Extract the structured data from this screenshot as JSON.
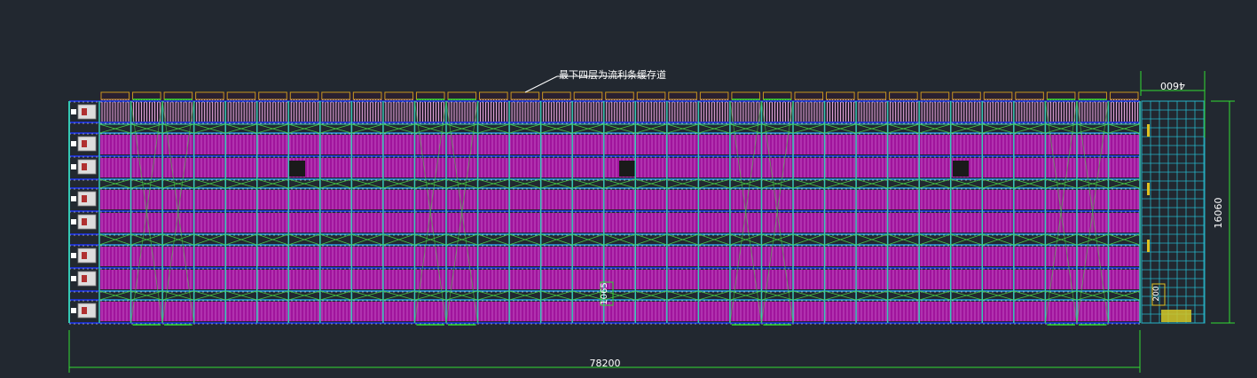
{
  "drawing": {
    "annotation": "最下四层为流利条缓存道",
    "dimensions": {
      "total_length": "78200",
      "section_width": "4600",
      "total_depth": "16060",
      "aisle_width": "1065",
      "small_offset": "200"
    },
    "colors": {
      "background": "#222830",
      "flow_rack": "#a0149c",
      "rack_frame": "#34c8b4",
      "bracing": "#46c846",
      "top_rollers": "#c8961e",
      "conveyor_grid": "#26b4c8",
      "beam_line": "#1e32c8",
      "dimension_line": "#32dc32"
    }
  }
}
